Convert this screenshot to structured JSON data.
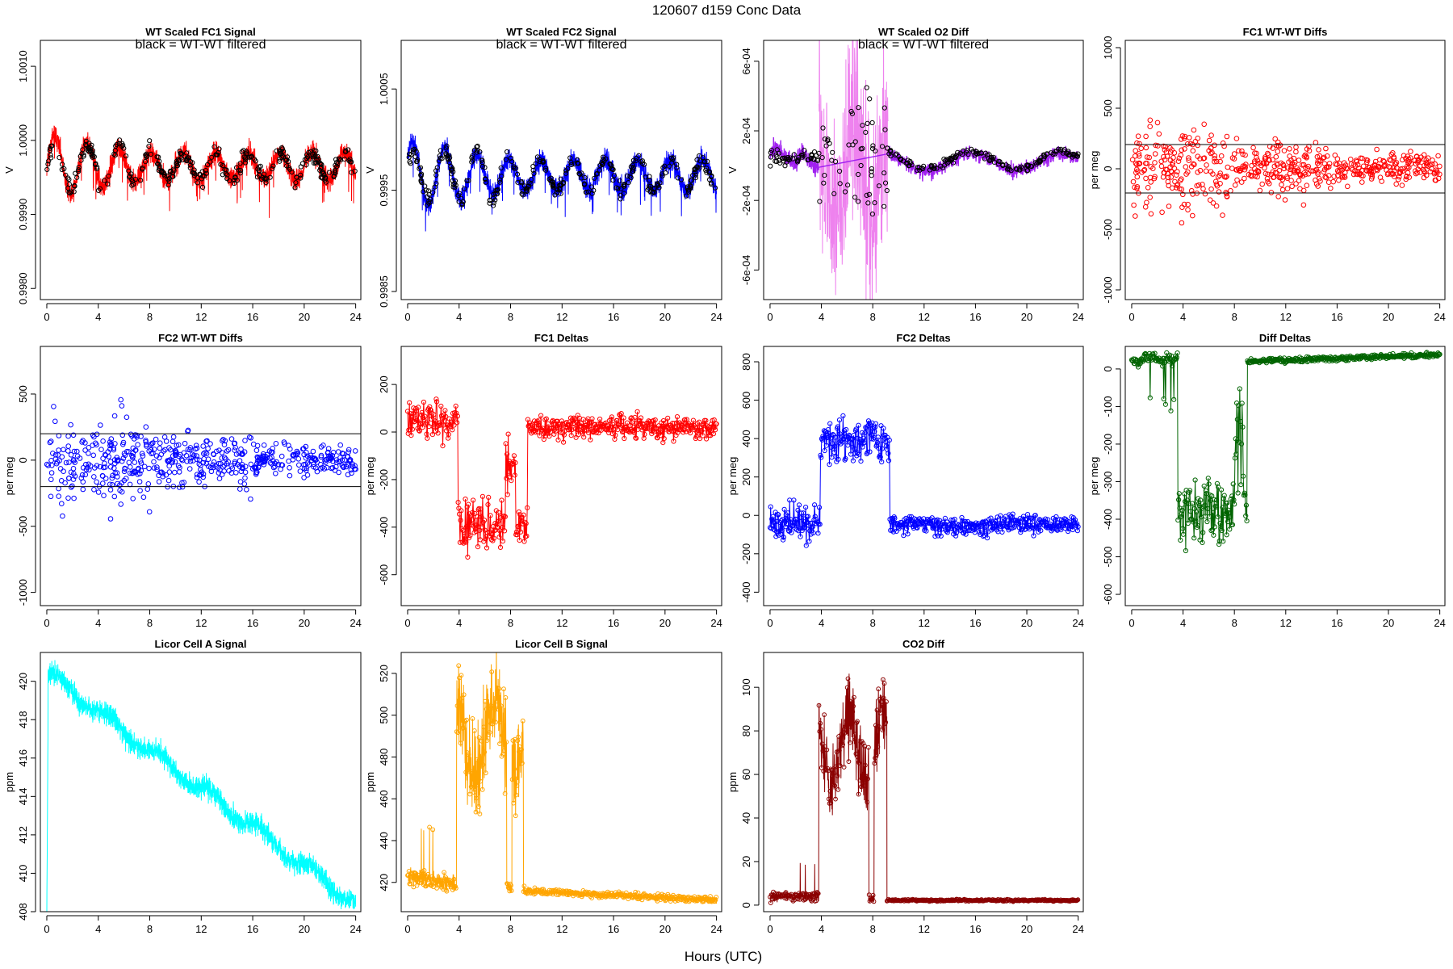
{
  "page": {
    "title": "120607    d159    Conc Data",
    "xlabel": "Hours (UTC)"
  },
  "chart_data": [
    {
      "id": "wt-fc1-signal",
      "title": "WT Scaled FC1 Signal",
      "subtitle": "black = WT-WT filtered",
      "ylabel": "V",
      "type": "line",
      "color": "#ff0000",
      "series_style": "dense-band",
      "overlay_color": "#000000",
      "xlim": [
        -0.5,
        24.4
      ],
      "ylim": [
        0.99785,
        1.00135
      ],
      "xticks": [
        0,
        4,
        8,
        12,
        16,
        20,
        24
      ],
      "yticks": [
        0.998,
        0.999,
        1.0,
        1.001
      ],
      "ytick_labels": [
        "0.9980",
        "0.9990",
        "1.0000",
        "1.0010"
      ],
      "base": 0.99965,
      "amp": 0.00018,
      "noise": 0.0003,
      "seed": 11,
      "shape": "signal1"
    },
    {
      "id": "wt-fc2-signal",
      "title": "WT Scaled FC2 Signal",
      "subtitle": "black = WT-WT filtered",
      "ylabel": "V",
      "type": "line",
      "color": "#0000ff",
      "series_style": "dense-band",
      "overlay_color": "#000000",
      "xlim": [
        -0.5,
        24.4
      ],
      "ylim": [
        0.99842,
        1.00098
      ],
      "xticks": [
        0,
        4,
        8,
        12,
        16,
        20,
        24
      ],
      "yticks": [
        0.9985,
        0.9995,
        1.0005
      ],
      "ytick_labels": [
        "0.9985",
        "0.9995",
        "1.0005"
      ],
      "base": 0.99965,
      "amp": 0.00015,
      "noise": 0.00022,
      "seed": 23,
      "shape": "signal2"
    },
    {
      "id": "wt-o2-diff",
      "title": "WT Scaled O2 Diff",
      "subtitle": "black = WT-WT filtered",
      "ylabel": "V",
      "type": "line",
      "color": "#a020f0",
      "series_style": "o2",
      "overlay_color": "#000000",
      "xlim": [
        -0.5,
        24.4
      ],
      "ylim": [
        -0.00077,
        0.00072
      ],
      "xticks": [
        0,
        4,
        8,
        12,
        16,
        20,
        24
      ],
      "yticks": [
        -0.0006,
        -0.0002,
        0.0002,
        0.0006
      ],
      "ytick_labels": [
        "-6e-04",
        "-2e-04",
        "2e-04",
        "6e-04"
      ],
      "seed": 37
    },
    {
      "id": "fc1-wt-wt-diffs",
      "title": "FC1 WT-WT Diffs",
      "subtitle": "",
      "ylabel": "per meg",
      "type": "scatter",
      "color": "#ff0000",
      "series_style": "scatter",
      "hlines": [
        200,
        -200
      ],
      "xlim": [
        -0.5,
        24.4
      ],
      "ylim": [
        -1080,
        1060
      ],
      "xticks": [
        0,
        4,
        8,
        12,
        16,
        20,
        24
      ],
      "yticks": [
        -1000,
        -500,
        0,
        500,
        1000
      ],
      "ytick_labels": [
        "-1000",
        "-500",
        "0",
        "500",
        "1000"
      ],
      "seed": 41
    },
    {
      "id": "fc2-wt-wt-diffs",
      "title": "FC2 WT-WT Diffs",
      "subtitle": "",
      "ylabel": "per meg",
      "type": "scatter",
      "color": "#0000ff",
      "series_style": "scatter",
      "hlines": [
        200,
        -200
      ],
      "xlim": [
        -0.5,
        24.4
      ],
      "ylim": [
        -1100,
        860
      ],
      "xticks": [
        0,
        4,
        8,
        12,
        16,
        20,
        24
      ],
      "yticks": [
        -1000,
        -500,
        0,
        500
      ],
      "ytick_labels": [
        "-1000",
        "-500",
        "0",
        "500"
      ],
      "seed": 53
    },
    {
      "id": "fc1-deltas",
      "title": "FC1 Deltas",
      "subtitle": "",
      "ylabel": "per meg",
      "type": "line",
      "color": "#ff0000",
      "series_style": "deltas",
      "xlim": [
        -0.5,
        24.4
      ],
      "ylim": [
        -730,
        360
      ],
      "xticks": [
        0,
        4,
        8,
        12,
        16,
        20,
        24
      ],
      "yticks": [
        -600,
        -400,
        -200,
        0,
        200
      ],
      "ytick_labels": [
        "-600",
        "-400",
        "-200",
        "0",
        "200"
      ],
      "seed": 61,
      "levels": {
        "early": 40,
        "mid": -390,
        "late": 20
      },
      "noise_early": 90,
      "noise_mid": 110,
      "noise_late": 45
    },
    {
      "id": "fc2-deltas",
      "title": "FC2 Deltas",
      "subtitle": "",
      "ylabel": "per meg",
      "type": "line",
      "color": "#0000ff",
      "series_style": "deltas",
      "xlim": [
        -0.5,
        24.4
      ],
      "ylim": [
        -470,
        880
      ],
      "xticks": [
        0,
        4,
        8,
        12,
        16,
        20,
        24
      ],
      "yticks": [
        -400,
        -200,
        0,
        200,
        400,
        600,
        800
      ],
      "ytick_labels": [
        "-400",
        "-200",
        "0",
        "200",
        "400",
        "600",
        "800"
      ],
      "seed": 71,
      "levels": {
        "early": -40,
        "mid": 380,
        "late": -50
      },
      "noise_early": 90,
      "noise_mid": 100,
      "noise_late": 45
    },
    {
      "id": "diff-deltas",
      "title": "Diff Deltas",
      "subtitle": "",
      "ylabel": "per meg",
      "type": "line",
      "color": "#006400",
      "series_style": "diffdeltas",
      "xlim": [
        -0.5,
        24.4
      ],
      "ylim": [
        -630,
        60
      ],
      "xticks": [
        0,
        4,
        8,
        12,
        16,
        20,
        24
      ],
      "yticks": [
        -600,
        -500,
        -400,
        -300,
        -200,
        -100,
        0
      ],
      "ytick_labels": [
        "-600",
        "-500",
        "-400",
        "-300",
        "-200",
        "-100",
        "0"
      ],
      "seed": 83
    },
    {
      "id": "licor-cell-a",
      "title": "Licor Cell A Signal",
      "subtitle": "",
      "ylabel": "ppm",
      "type": "line",
      "color": "#00ffff",
      "series_style": "licorA",
      "xlim": [
        -0.5,
        24.4
      ],
      "ylim": [
        408,
        421.5
      ],
      "xticks": [
        0,
        4,
        8,
        12,
        16,
        20,
        24
      ],
      "yticks": [
        408,
        410,
        412,
        414,
        416,
        418,
        420
      ],
      "ytick_labels": [
        "408",
        "410",
        "412",
        "414",
        "416",
        "418",
        "420"
      ],
      "seed": 97
    },
    {
      "id": "licor-cell-b",
      "title": "Licor Cell B Signal",
      "subtitle": "",
      "ylabel": "ppm",
      "type": "line",
      "color": "#ffa500",
      "series_style": "licorB",
      "xlim": [
        -0.5,
        24.4
      ],
      "ylim": [
        406,
        530
      ],
      "xticks": [
        0,
        4,
        8,
        12,
        16,
        20,
        24
      ],
      "yticks": [
        420,
        440,
        460,
        480,
        500,
        520
      ],
      "ytick_labels": [
        "420",
        "440",
        "460",
        "480",
        "500",
        "520"
      ],
      "seed": 101
    },
    {
      "id": "co2-diff",
      "title": "CO2 Diff",
      "subtitle": "",
      "ylabel": "ppm",
      "type": "line",
      "color": "#8b0000",
      "series_style": "co2",
      "xlim": [
        -0.5,
        24.4
      ],
      "ylim": [
        -3,
        116
      ],
      "xticks": [
        0,
        4,
        8,
        12,
        16,
        20,
        24
      ],
      "yticks": [
        0,
        20,
        40,
        60,
        80,
        100
      ],
      "ytick_labels": [
        "0",
        "20",
        "40",
        "60",
        "80",
        "100"
      ],
      "seed": 113
    }
  ]
}
